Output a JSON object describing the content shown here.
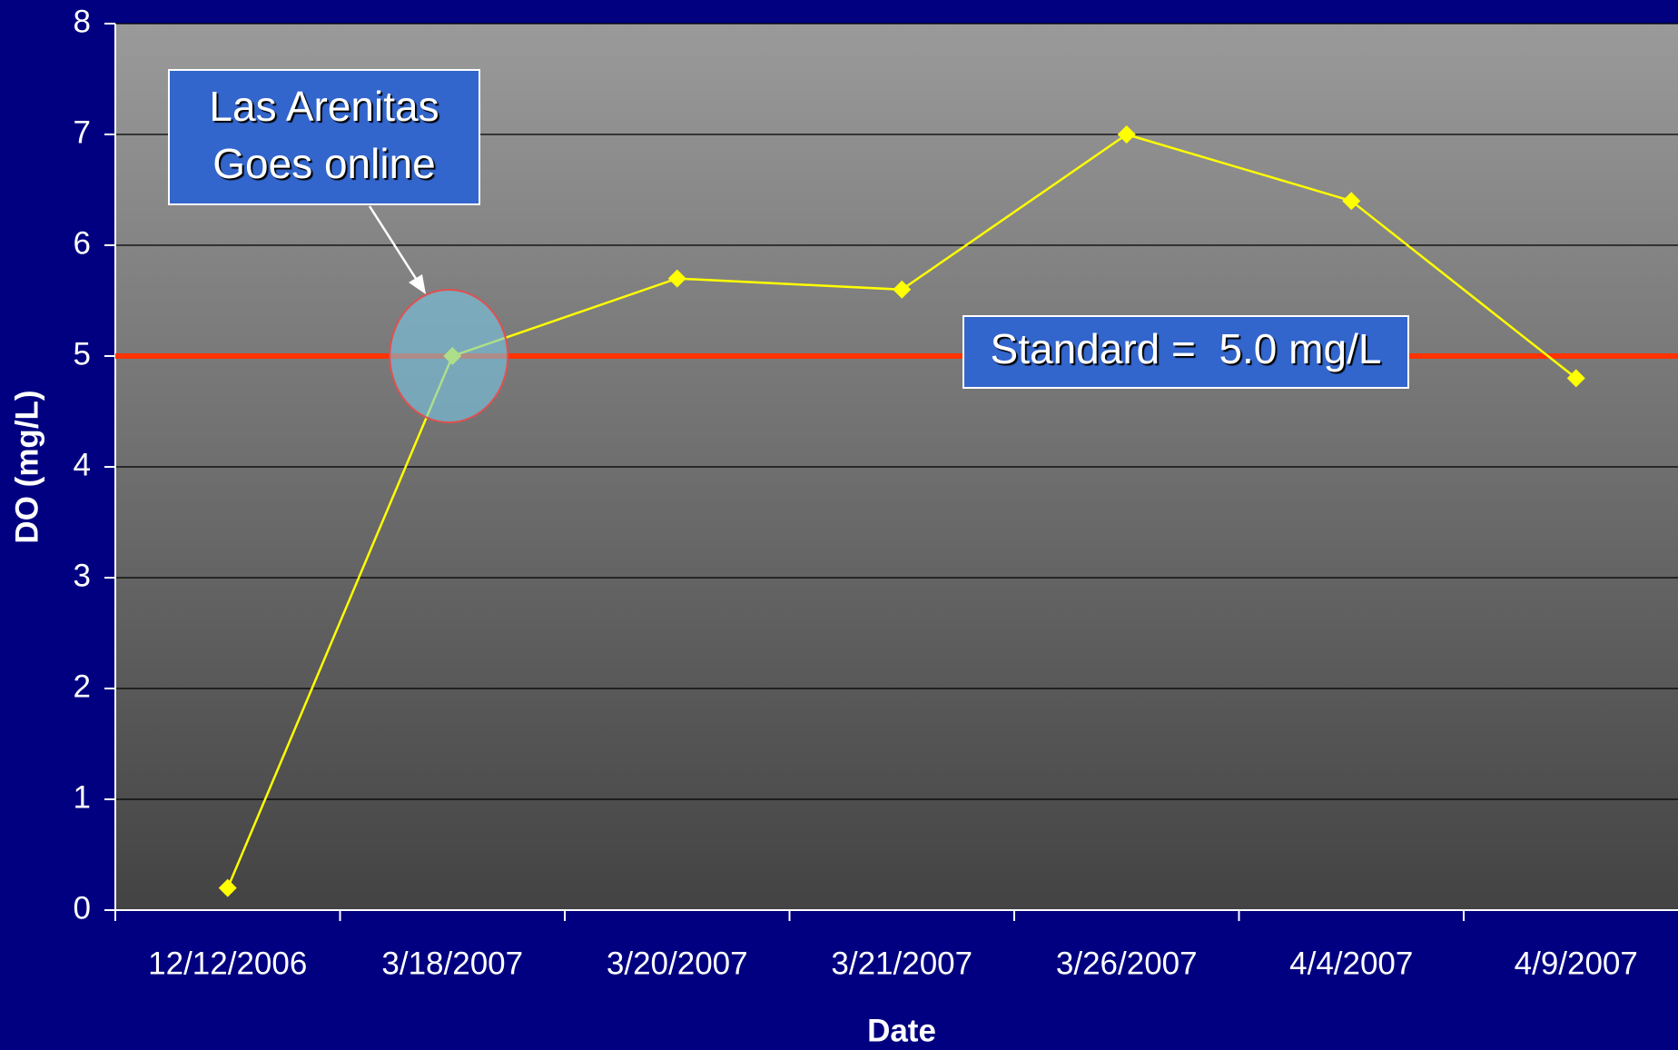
{
  "chart_data": {
    "type": "line",
    "x_label": "Date",
    "y_label": "DO (mg/L)",
    "categories": [
      "12/12/2006",
      "3/18/2007",
      "3/20/2007",
      "3/21/2007",
      "3/26/2007",
      "4/4/2007",
      "4/9/2007"
    ],
    "series": [
      {
        "color": "#ffff00",
        "values": [
          0.2,
          5.0,
          5.7,
          5.6,
          7.0,
          6.4,
          4.8
        ]
      }
    ],
    "ylim": [
      0,
      8
    ],
    "yticks": [
      0,
      1,
      2,
      3,
      4,
      5,
      6,
      7,
      8
    ],
    "grid": true,
    "reference_line": {
      "value": 5.0,
      "label": "Standard =  5.0 mg/L",
      "color": "#ff3300"
    },
    "annotation": {
      "lines": [
        "Las Arenitas",
        "Goes online"
      ],
      "point": 1
    }
  }
}
